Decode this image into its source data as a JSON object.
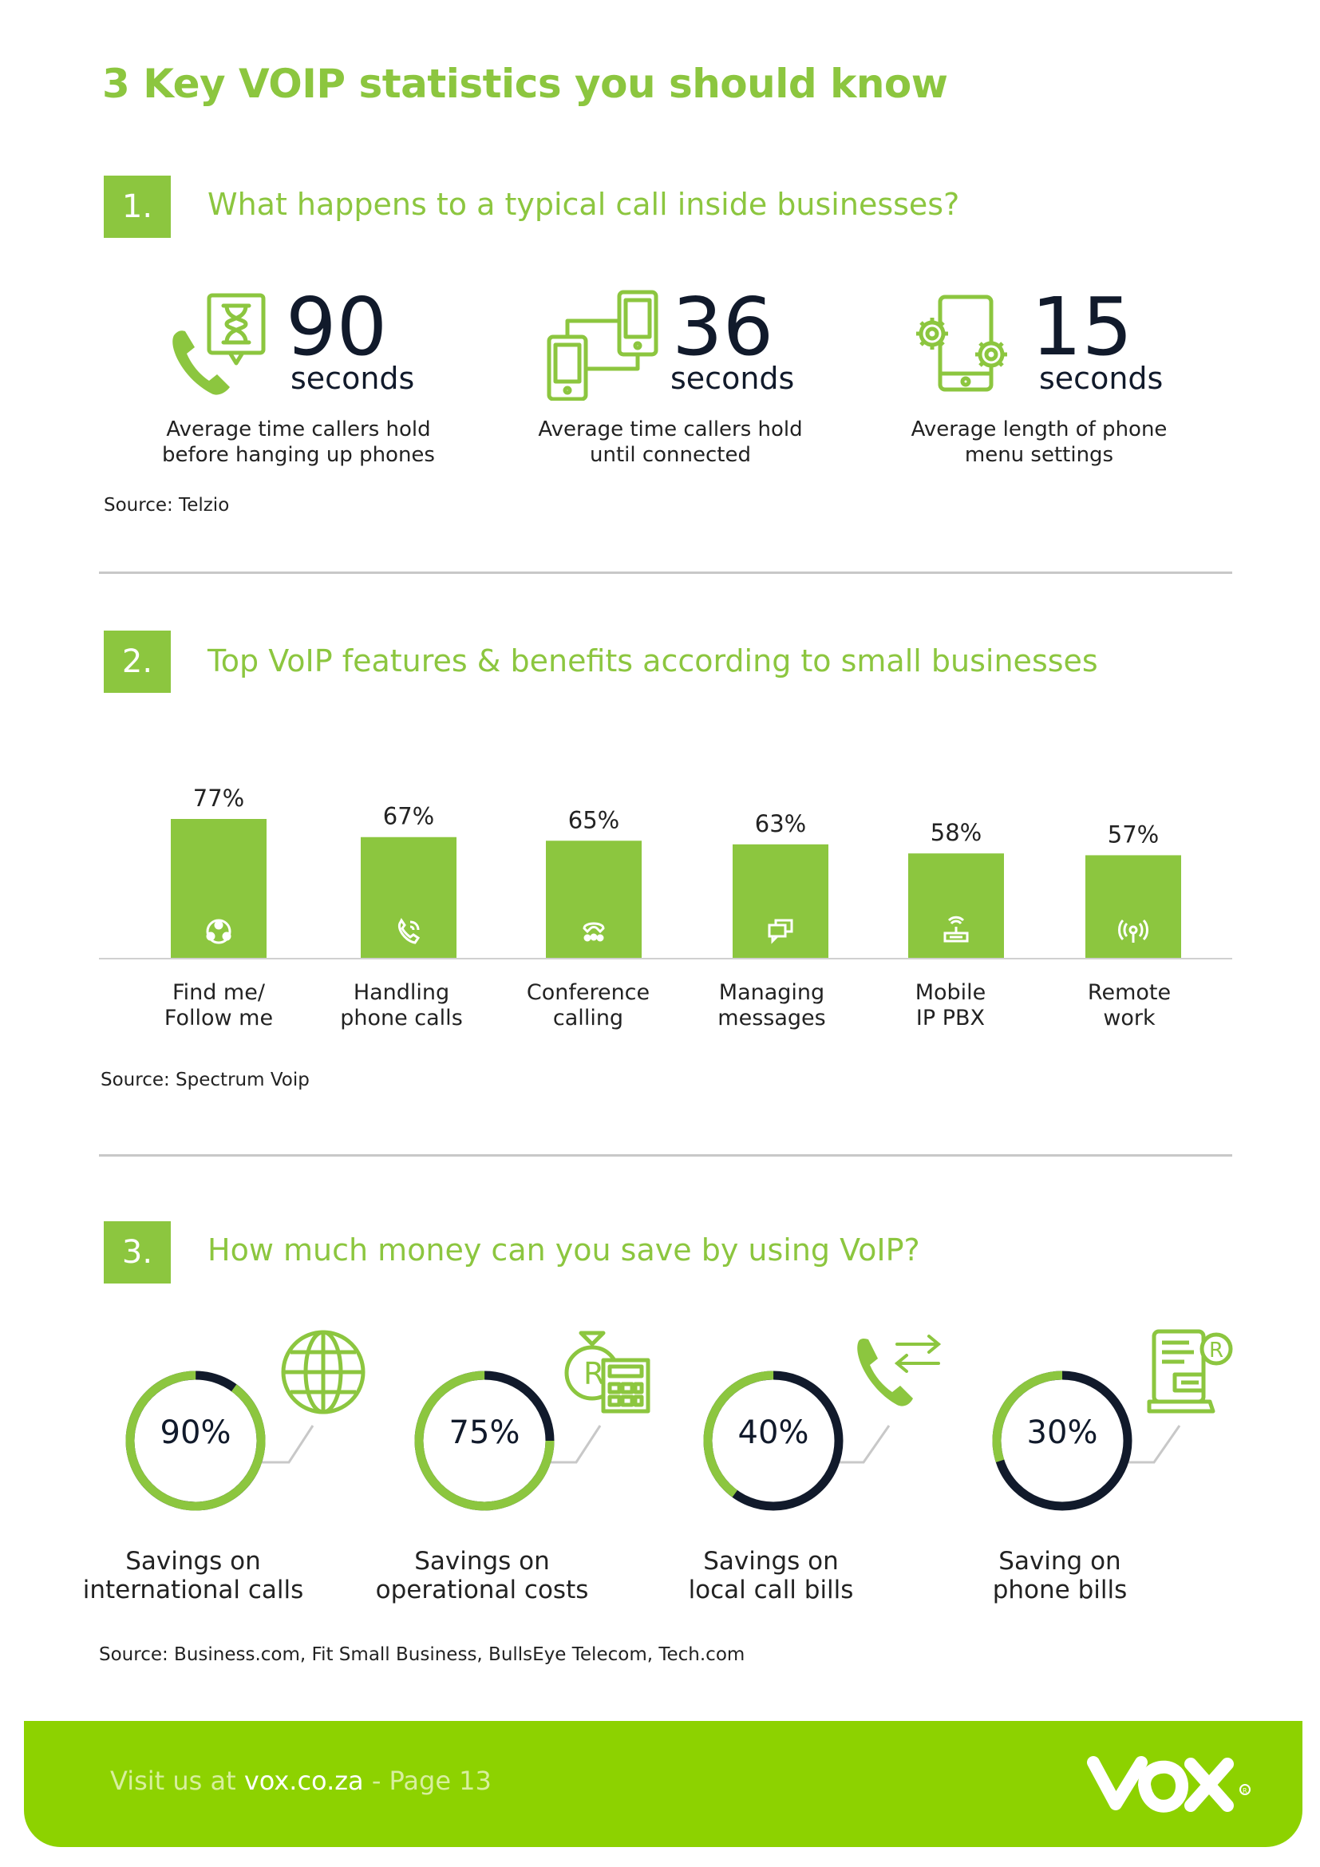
{
  "title": "3 Key VOIP statistics you should know",
  "colors": {
    "accent": "#8cc63f",
    "dark": "#111a2b",
    "footer": "#8dd200"
  },
  "section1": {
    "number": "1.",
    "title": "What happens to a typical call inside businesses?",
    "stats": [
      {
        "value": "90",
        "unit": "seconds",
        "desc": "Average time callers hold\nbefore hanging up phones",
        "icon": "phone-hourglass-icon"
      },
      {
        "value": "36",
        "unit": "seconds",
        "desc": "Average time callers hold\nuntil connected",
        "icon": "connected-phones-icon"
      },
      {
        "value": "15",
        "unit": "seconds",
        "desc": "Average length of phone\nmenu settings",
        "icon": "phone-settings-icon"
      }
    ],
    "source": "Source: Telzio"
  },
  "section2": {
    "number": "2.",
    "title": "Top VoIP features & benefits according to small businesses",
    "source": "Source: Spectrum Voip"
  },
  "chart_data": {
    "type": "bar",
    "categories": [
      "Find me/\nFollow me",
      "Handling\nphone calls",
      "Conference\ncalling",
      "Managing\nmessages",
      "Mobile\nIP PBX",
      "Remote\nwork"
    ],
    "values": [
      77,
      67,
      65,
      63,
      58,
      57
    ],
    "value_labels": [
      "77%",
      "67%",
      "65%",
      "63%",
      "58%",
      "57%"
    ],
    "icons": [
      "follow-me-icon",
      "phone-call-icon",
      "conference-icon",
      "messages-icon",
      "router-icon",
      "antenna-icon"
    ],
    "title": "",
    "xlabel": "",
    "ylabel": "",
    "grid": false
  },
  "section3": {
    "number": "3.",
    "title": "How much money can you save by using VoIP?",
    "items": [
      {
        "value": "90%",
        "fraction": 0.9,
        "label": "Savings on\ninternational calls",
        "icon": "globe-icon"
      },
      {
        "value": "75%",
        "fraction": 0.75,
        "label": "Savings on\noperational costs",
        "icon": "money-calculator-icon"
      },
      {
        "value": "40%",
        "fraction": 0.4,
        "label": "Savings on\nlocal call bills",
        "icon": "phone-arrows-icon"
      },
      {
        "value": "30%",
        "fraction": 0.3,
        "label": "Saving on\nphone bills",
        "icon": "bill-icon"
      }
    ],
    "source": "Source: Business.com, Fit Small Business, BullsEye Telecom, Tech.com"
  },
  "footer": {
    "prefix": "Visit us at ",
    "site": "vox.co.za",
    "suffix": " - Page 13",
    "logo": "vox"
  }
}
